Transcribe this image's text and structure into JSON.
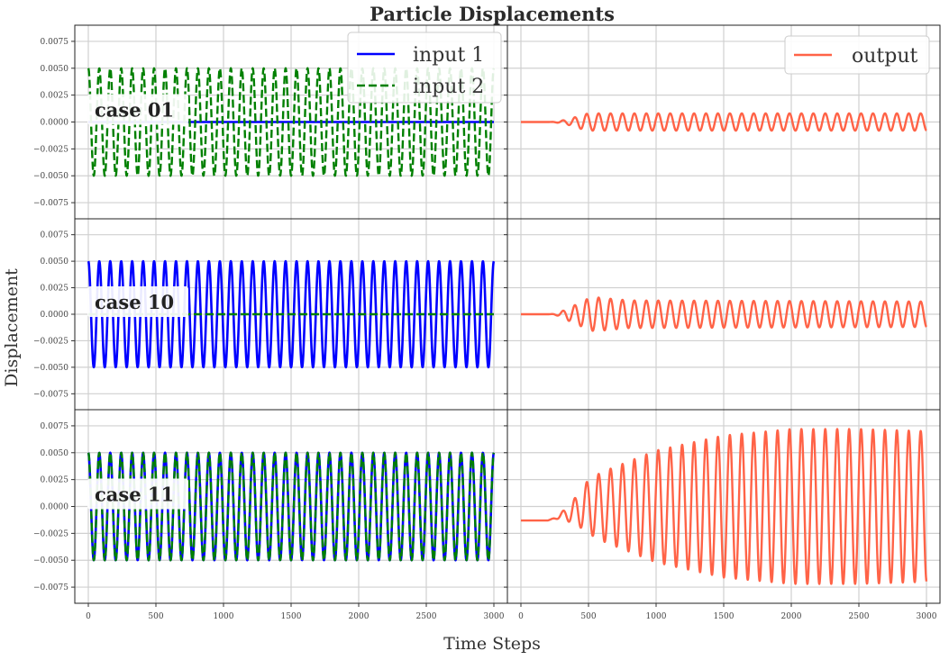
{
  "chart_data": {
    "type": "line",
    "title": "Particle Displacements",
    "xlabel": "Time Steps",
    "ylabel": "Displacement",
    "layout": "3 rows x 2 columns, shared axes",
    "xlim": [
      -100,
      3100
    ],
    "ylim": [
      -0.009,
      0.009
    ],
    "xticks": [
      0,
      500,
      1000,
      1500,
      2000,
      2500,
      3000
    ],
    "xtick_labels": [
      "0",
      "500",
      "1000",
      "1500",
      "2000",
      "2500",
      "3000"
    ],
    "yticks": [
      -0.0075,
      -0.005,
      -0.0025,
      0.0,
      0.0025,
      0.005,
      0.0075
    ],
    "ytick_labels": [
      "−0.0075",
      "−0.0050",
      "−0.0025",
      "0.0000",
      "0.0025",
      "0.0050",
      "0.0075"
    ],
    "grid": true,
    "colors": {
      "input1": "#0000ff",
      "input2": "#008000",
      "output": "#ff6347"
    },
    "input_signal": {
      "amplitude": 0.005,
      "x_start": 0,
      "x_end": 3000,
      "cycles": 37
    },
    "output_signal": {
      "cycles": 34,
      "onset_step": 200
    },
    "rows": [
      {
        "case_label": "case 01",
        "inputs": [
          {
            "name": "input 1",
            "style": "solid",
            "amplitude": 0.0
          },
          {
            "name": "input 2",
            "style": "dashed",
            "amplitude": 0.005
          }
        ],
        "output": {
          "name": "output",
          "envelope_steps": [
            0,
            200,
            300,
            450,
            3000
          ],
          "envelope_values": [
            0,
            0,
            0.0004,
            0.0008,
            0.0008
          ],
          "offset": 0.0,
          "start_value": 0.0
        }
      },
      {
        "case_label": "case 10",
        "inputs": [
          {
            "name": "input 1",
            "style": "solid",
            "amplitude": 0.005
          },
          {
            "name": "input 2",
            "style": "dashed",
            "amplitude": 0.0
          }
        ],
        "output": {
          "name": "output",
          "envelope_steps": [
            0,
            200,
            350,
            550,
            800,
            3000
          ],
          "envelope_values": [
            0,
            0,
            0.0012,
            0.0016,
            0.0013,
            0.0012
          ],
          "offset": 0.0,
          "start_value": 0.0
        }
      },
      {
        "case_label": "case 11",
        "inputs": [
          {
            "name": "input 1",
            "style": "solid",
            "amplitude": 0.005
          },
          {
            "name": "input 2",
            "style": "dashed",
            "amplitude": 0.005
          }
        ],
        "output": {
          "name": "output",
          "envelope_steps": [
            0,
            200,
            350,
            600,
            1000,
            1500,
            2000,
            2500,
            3000
          ],
          "envelope_values": [
            0,
            0,
            0.0015,
            0.0032,
            0.0052,
            0.0066,
            0.0072,
            0.0072,
            0.007
          ],
          "offset": 0.0,
          "start_value": -0.0013
        }
      }
    ],
    "legends": [
      {
        "panel": "left-top",
        "placement": "upper right",
        "entries": [
          "input 1",
          "input 2"
        ]
      },
      {
        "panel": "right-top",
        "placement": "upper right",
        "entries": [
          "output"
        ]
      }
    ]
  }
}
